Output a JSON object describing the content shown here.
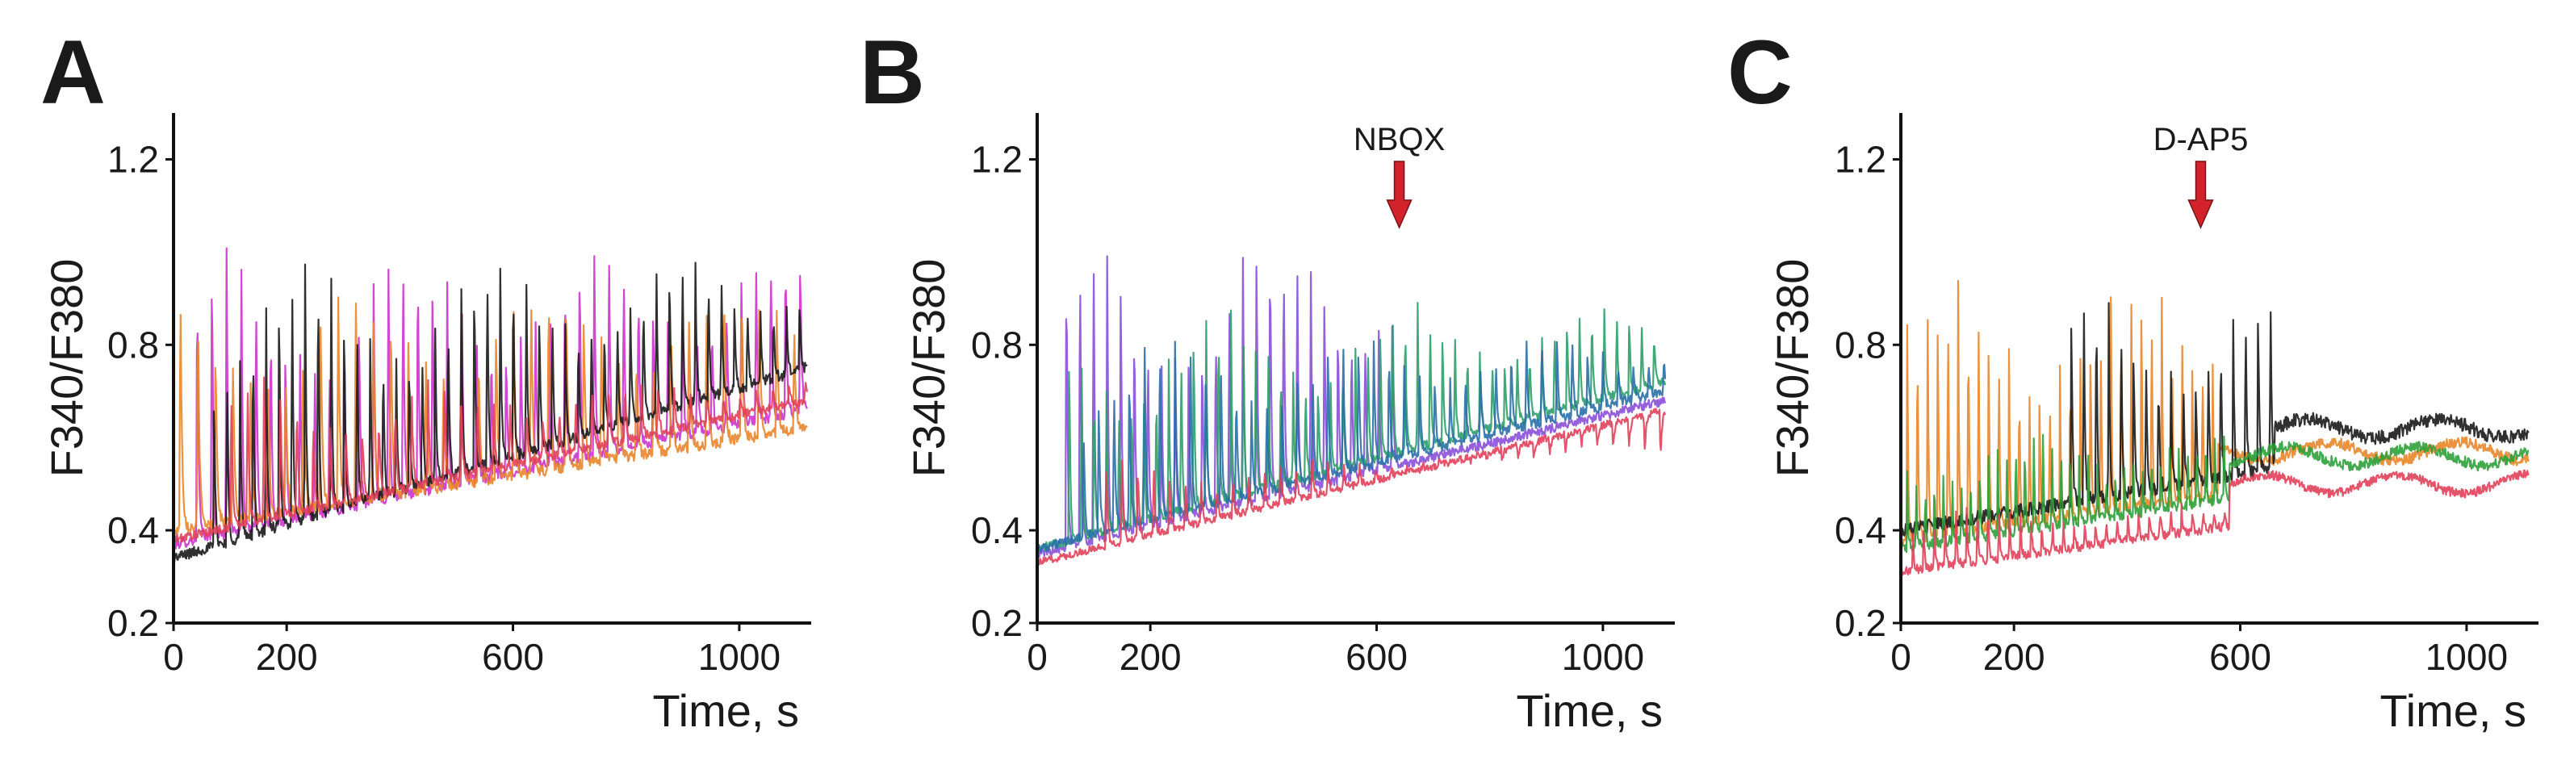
{
  "chart_data": [
    {
      "panel": "A",
      "type": "line",
      "xlabel": "Time, s",
      "ylabel": "F340/F380",
      "xlim": [
        0,
        1120
      ],
      "ylim": [
        0.2,
        1.3
      ],
      "xticks": [
        0,
        200,
        600,
        1000
      ],
      "yticks": [
        0.2,
        0.4,
        0.8,
        1.2
      ],
      "annotation": null,
      "series": [
        {
          "color": "#cc33cc",
          "baseline_start": 0.37,
          "baseline_end": 0.66,
          "peak": 1.0,
          "period": 26,
          "t_start": 40,
          "t_stop": 1120,
          "t_end": 1120,
          "post_level": null,
          "noise": 0.012
        },
        {
          "color": "#e8862a",
          "baseline_start": 0.4,
          "baseline_end": 0.62,
          "peak": 0.92,
          "period": 31,
          "t_start": 10,
          "t_stop": 1120,
          "t_end": 1120,
          "post_level": null,
          "noise": 0.012
        },
        {
          "color": "#1a1a1a",
          "baseline_start": 0.34,
          "baseline_end": 0.75,
          "peak": 0.98,
          "period": 23,
          "t_start": 70,
          "t_stop": 1120,
          "t_end": 1120,
          "post_level": null,
          "noise": 0.012
        },
        {
          "color": "#e0405a",
          "baseline_start": 0.38,
          "baseline_end": 0.68,
          "peak": 0.72,
          "period": 29,
          "t_start": 100,
          "t_stop": 1120,
          "t_end": 1120,
          "post_level": null,
          "noise": 0.01
        }
      ]
    },
    {
      "panel": "B",
      "type": "line",
      "xlabel": "Time, s",
      "ylabel": "F340/F380",
      "xlim": [
        0,
        1120
      ],
      "ylim": [
        0.2,
        1.3
      ],
      "xticks": [
        0,
        200,
        600,
        1000
      ],
      "yticks": [
        0.2,
        0.4,
        0.8,
        1.2
      ],
      "annotation": {
        "label": "NBQX",
        "x": 640
      },
      "series": [
        {
          "color": "#8a4fd8",
          "baseline_start": 0.35,
          "baseline_end": 0.68,
          "peak": 1.03,
          "period": 24,
          "t_start": 50,
          "t_stop": 640,
          "t_end": 1110,
          "post_level": null,
          "noise": 0.01
        },
        {
          "color": "#2e9e6a",
          "baseline_start": 0.36,
          "baseline_end": 0.72,
          "peak": 0.88,
          "period": 22,
          "t_start": 55,
          "t_stop": 1110,
          "t_end": 1110,
          "post_level": null,
          "noise": 0.01
        },
        {
          "color": "#2a6fa8",
          "baseline_start": 0.36,
          "baseline_end": 0.7,
          "peak": 0.82,
          "period": 27,
          "t_start": 80,
          "t_stop": 1110,
          "t_end": 1110,
          "post_level": null,
          "noise": 0.01
        },
        {
          "color": "#e0405a",
          "baseline_start": 0.33,
          "baseline_end": 0.66,
          "peak": 0.55,
          "period": 28,
          "t_start": 120,
          "t_stop": 1110,
          "t_end": 1110,
          "post_level": null,
          "noise": 0.008
        }
      ]
    },
    {
      "panel": "C",
      "type": "line",
      "xlabel": "Time, s",
      "ylabel": "F340/F380",
      "xlim": [
        0,
        1120
      ],
      "ylim": [
        0.2,
        1.3
      ],
      "xticks": [
        0,
        200,
        600,
        1000
      ],
      "yticks": [
        0.2,
        0.4,
        0.8,
        1.2
      ],
      "annotation": {
        "label": "D-AP5",
        "x": 530
      },
      "series": [
        {
          "color": "#e8862a",
          "baseline_start": 0.38,
          "baseline_end": 0.57,
          "peak": 0.93,
          "period": 18,
          "t_start": 10,
          "t_stop": 560,
          "t_end": 1110,
          "post_level": 0.57,
          "noise": 0.012
        },
        {
          "color": "#1a1a1a",
          "baseline_start": 0.4,
          "baseline_end": 0.62,
          "peak": 0.9,
          "period": 22,
          "t_start": 300,
          "t_stop": 660,
          "t_end": 1110,
          "post_level": 0.62,
          "noise": 0.015
        },
        {
          "color": "#2ea03a",
          "baseline_start": 0.36,
          "baseline_end": 0.57,
          "peak": 0.62,
          "period": 16,
          "t_start": 10,
          "t_stop": 580,
          "t_end": 1110,
          "post_level": 0.56,
          "noise": 0.012
        },
        {
          "color": "#e0405a",
          "baseline_start": 0.31,
          "baseline_end": 0.5,
          "peak": 0.45,
          "period": 19,
          "t_start": 20,
          "t_stop": 580,
          "t_end": 1110,
          "post_level": 0.5,
          "noise": 0.01
        }
      ]
    }
  ]
}
